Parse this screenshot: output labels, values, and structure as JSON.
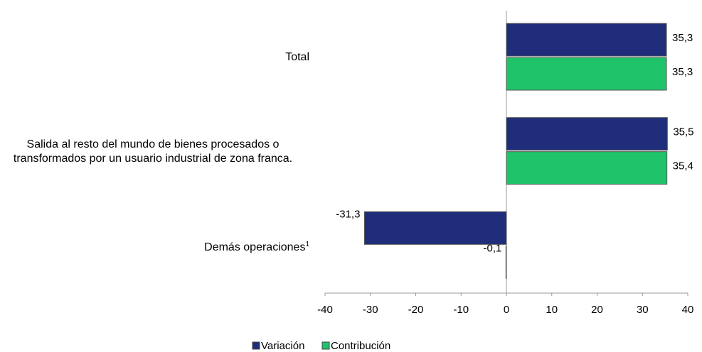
{
  "chart_data": {
    "type": "barh",
    "categories": [
      "Total",
      "Salida al resto del mundo de bienes procesados o transformados por un usuario industrial de zona franca.",
      "Demás operaciones"
    ],
    "category_superscripts": [
      null,
      null,
      "1"
    ],
    "series": [
      {
        "name": "Variación",
        "color": "#1f2d7b",
        "values": [
          35.3,
          35.5,
          -31.3
        ],
        "value_labels": [
          "35,3",
          "35,5",
          "-31,3"
        ]
      },
      {
        "name": "Contribución",
        "color": "#1fc46a",
        "values": [
          35.3,
          35.4,
          -0.1
        ],
        "value_labels": [
          "35,3",
          "35,4",
          "-0,1"
        ]
      }
    ],
    "xlim": [
      -40,
      40
    ],
    "xticks": [
      -40,
      -30,
      -20,
      -10,
      0,
      10,
      20,
      30,
      40
    ],
    "legend": "bottom"
  }
}
